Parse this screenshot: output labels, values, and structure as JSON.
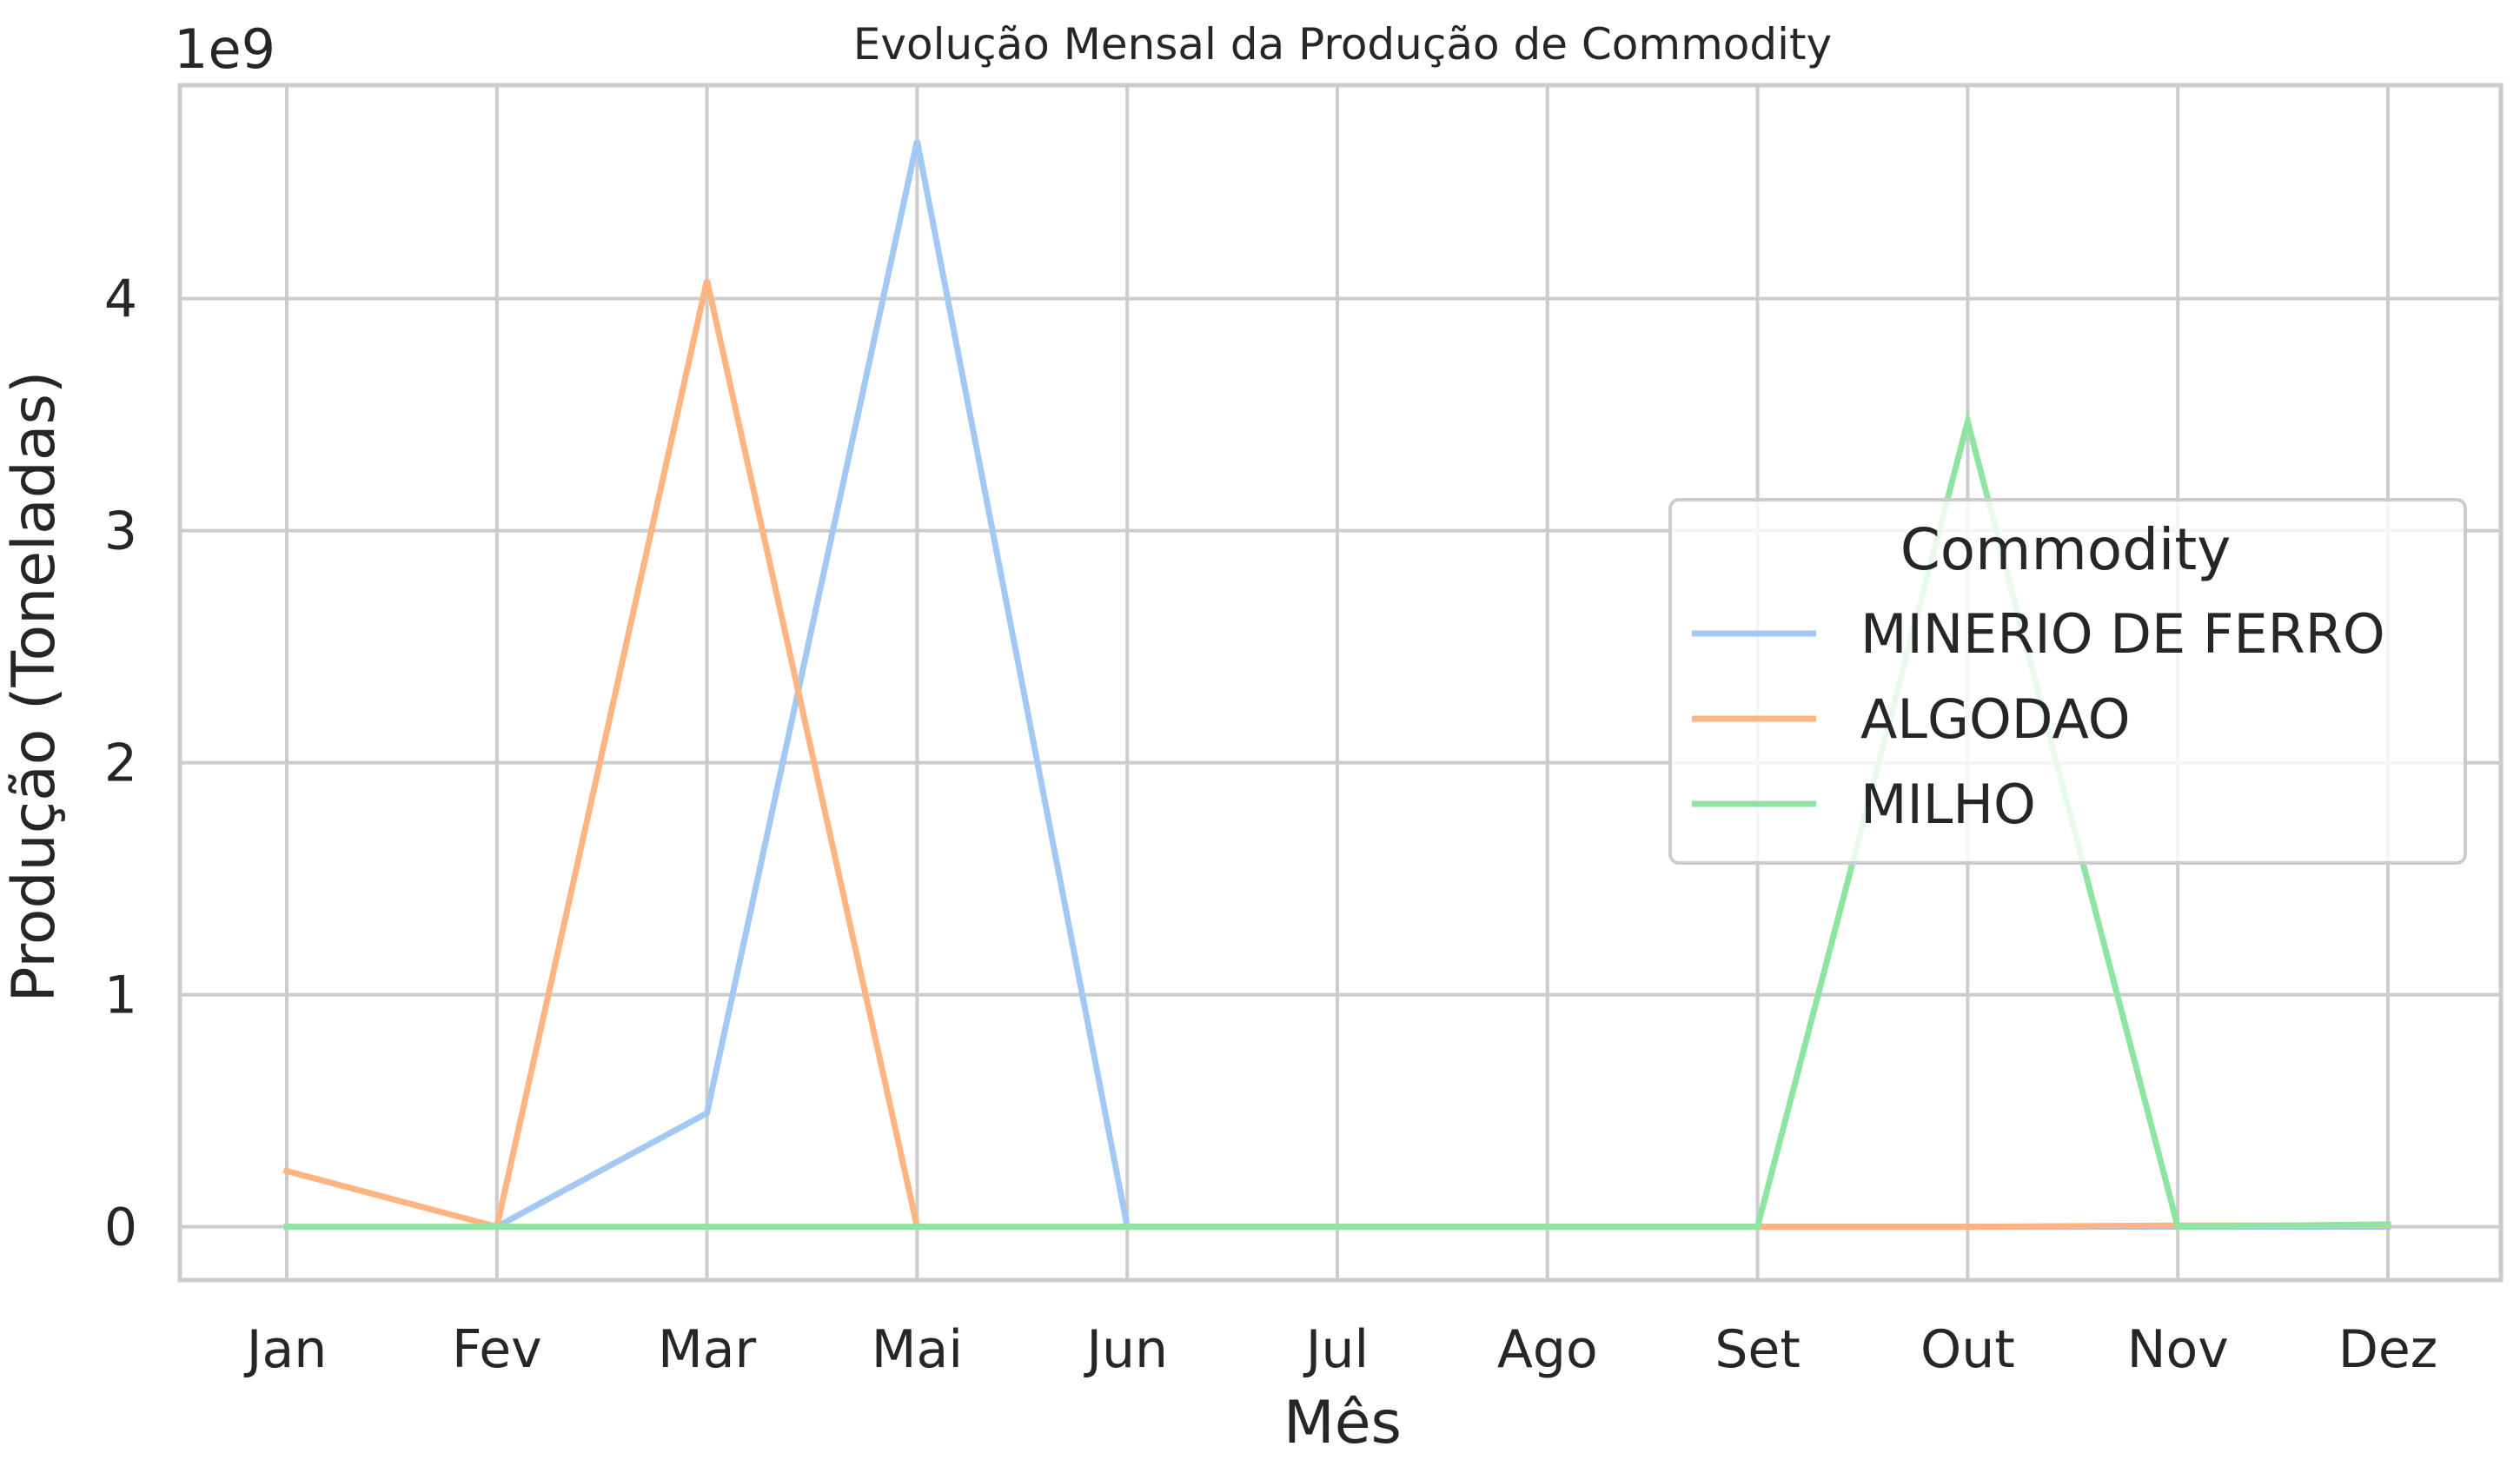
{
  "chart_data": {
    "type": "line",
    "title": "Evolução Mensal da Produção de Commodity",
    "xlabel": "Mês",
    "ylabel": "Produção (Toneladas)",
    "y_offset_label": "1e9",
    "categories": [
      "Jan",
      "Fev",
      "Mar",
      "Mai",
      "Jun",
      "Jul",
      "Ago",
      "Set",
      "Out",
      "Nov",
      "Dez"
    ],
    "y_ticks": [
      0,
      1,
      2,
      3,
      4
    ],
    "y_tick_labels": [
      "0",
      "1",
      "2",
      "3",
      "4"
    ],
    "ylim": [
      -0.23,
      4.92
    ],
    "grid": true,
    "legend": {
      "title": "Commodity",
      "placement": "center-right"
    },
    "series": [
      {
        "name": "MINERIO DE FERRO",
        "color": "#a1c9f4",
        "values": [
          0,
          0,
          0.49,
          4.68,
          0,
          0,
          0,
          0,
          0,
          0,
          0
        ]
      },
      {
        "name": "ALGODAO",
        "color": "#ffb482",
        "values": [
          0.24,
          0,
          4.08,
          0,
          0,
          0,
          0,
          0,
          0,
          0.005,
          0.005
        ]
      },
      {
        "name": "MILHO",
        "color": "#8de5a1",
        "values": [
          0,
          0,
          0,
          0,
          0,
          0,
          0,
          0,
          3.47,
          0,
          0.01
        ]
      }
    ]
  }
}
